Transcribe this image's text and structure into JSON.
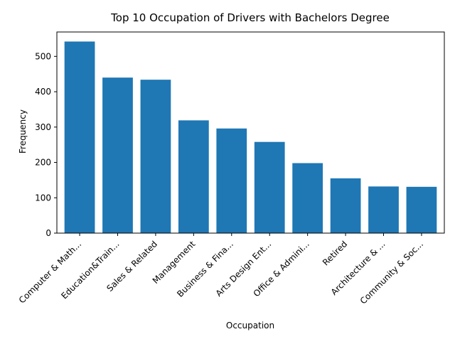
{
  "chart_data": {
    "type": "bar",
    "title": "Top 10 Occupation of Drivers with Bachelors Degree",
    "xlabel": "Occupation",
    "ylabel": "Frequency",
    "categories": [
      "Computer & Math...",
      "Education&Train...",
      "Sales & Related",
      "Management",
      "Business & Fina...",
      "Arts Design Ent...",
      "Office & Admini...",
      "Retired",
      "Architecture & ...",
      "Community & Soc..."
    ],
    "values": [
      542,
      440,
      434,
      319,
      296,
      258,
      198,
      155,
      132,
      131
    ],
    "ylim": [
      0,
      569
    ],
    "yticks": [
      0,
      100,
      200,
      300,
      400,
      500
    ],
    "bar_color": "#1f77b4",
    "grid": false,
    "legend": "none"
  }
}
